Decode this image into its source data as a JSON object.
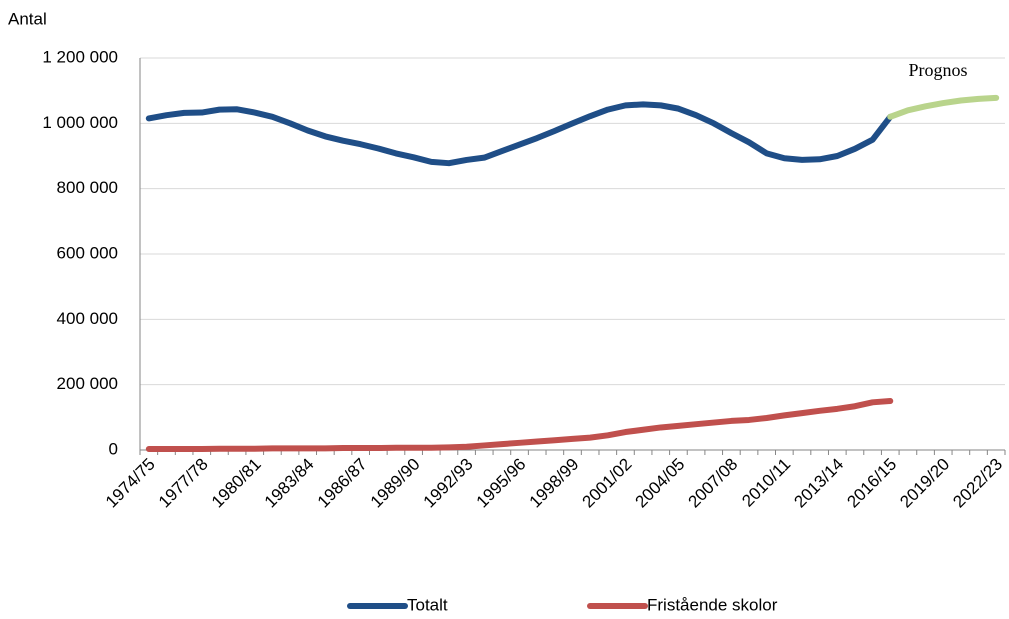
{
  "chart_data": {
    "type": "line",
    "ylabel": "Antal",
    "annotation": "Prognos",
    "categories": [
      "1974/75",
      null,
      null,
      "1977/78",
      null,
      null,
      "1980/81",
      null,
      null,
      "1983/84",
      null,
      null,
      "1986/87",
      null,
      null,
      "1989/90",
      null,
      null,
      "1992/93",
      null,
      null,
      "1995/96",
      null,
      null,
      "1998/99",
      null,
      null,
      "2001/02",
      null,
      null,
      "2004/05",
      null,
      null,
      "2007/08",
      null,
      null,
      "2010/11",
      null,
      null,
      "2013/14",
      null,
      null,
      "2016/15",
      null,
      null,
      "2019/20",
      null,
      null,
      "2022/23"
    ],
    "series": [
      {
        "name": "Totalt",
        "color": "#1f4e87",
        "values": [
          1015000,
          1025000,
          1032000,
          1033000,
          1042000,
          1043000,
          1033000,
          1020000,
          1000000,
          978000,
          960000,
          947000,
          936000,
          923000,
          908000,
          896000,
          882000,
          878000,
          888000,
          895000,
          915000,
          935000,
          955000,
          977000,
          1000000,
          1022000,
          1042000,
          1055000,
          1058000,
          1055000,
          1045000,
          1025000,
          1000000,
          970000,
          942000,
          908000,
          893000,
          888000,
          890000,
          900000,
          922000,
          950000,
          1020000,
          null,
          null,
          null,
          null,
          null,
          null
        ]
      },
      {
        "color": "#b9d48c",
        "values": [
          null,
          null,
          null,
          null,
          null,
          null,
          null,
          null,
          null,
          null,
          null,
          null,
          null,
          null,
          null,
          null,
          null,
          null,
          null,
          null,
          null,
          null,
          null,
          null,
          null,
          null,
          null,
          null,
          null,
          null,
          null,
          null,
          null,
          null,
          null,
          null,
          null,
          null,
          null,
          null,
          null,
          null,
          1020000,
          1040000,
          1052000,
          1062000,
          1070000,
          1075000,
          1078000
        ]
      },
      {
        "name": "Fristående skolor",
        "color": "#c0504d",
        "values": [
          3000,
          3000,
          3000,
          3000,
          4000,
          4000,
          4000,
          5000,
          5000,
          5000,
          5000,
          6000,
          6000,
          6000,
          7000,
          7000,
          7000,
          8000,
          10000,
          14000,
          18000,
          22000,
          26000,
          30000,
          34000,
          38000,
          45000,
          55000,
          62000,
          69000,
          74000,
          79000,
          84000,
          89000,
          92000,
          98000,
          106000,
          113000,
          120000,
          126000,
          134000,
          146000,
          150000,
          null,
          null,
          null,
          null,
          null,
          null
        ]
      }
    ],
    "ylim": [
      0,
      1200000
    ],
    "yticks": [
      0,
      {
        "value": 200000,
        "label": "200 000"
      },
      {
        "value": 400000,
        "label": "400 000"
      },
      {
        "value": 600000,
        "label": "600 000"
      },
      {
        "value": 800000,
        "label": "800 000"
      },
      {
        "value": 1000000,
        "label": "1 000 000"
      },
      {
        "value": 1200000,
        "label": "1 200 000"
      }
    ],
    "grid": true,
    "legend": "bottom"
  }
}
